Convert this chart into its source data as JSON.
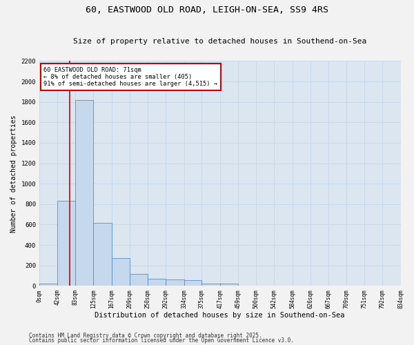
{
  "title": "60, EASTWOOD OLD ROAD, LEIGH-ON-SEA, SS9 4RS",
  "subtitle": "Size of property relative to detached houses in Southend-on-Sea",
  "xlabel": "Distribution of detached houses by size in Southend-on-Sea",
  "ylabel": "Number of detached properties",
  "bin_edges": [
    0,
    42,
    83,
    125,
    167,
    209,
    250,
    292,
    334,
    375,
    417,
    459,
    500,
    542,
    584,
    626,
    667,
    709,
    751,
    792,
    834
  ],
  "bar_heights": [
    20,
    830,
    1820,
    620,
    270,
    120,
    70,
    60,
    55,
    25,
    20,
    5,
    3,
    0,
    0,
    0,
    0,
    0,
    0,
    0
  ],
  "bar_color": "#c5d8ee",
  "bar_edge_color": "#5b8dc8",
  "grid_color": "#c8d8ec",
  "bg_color": "#dce6f1",
  "fig_bg_color": "#f2f2f2",
  "property_size": 71,
  "vline_color": "#cc0000",
  "annotation_text": "60 EASTWOOD OLD ROAD: 71sqm\n← 8% of detached houses are smaller (405)\n91% of semi-detached houses are larger (4,515) →",
  "annotation_box_color": "#ffffff",
  "annotation_box_edge": "#cc0000",
  "ylim": [
    0,
    2200
  ],
  "yticks": [
    0,
    200,
    400,
    600,
    800,
    1000,
    1200,
    1400,
    1600,
    1800,
    2000,
    2200
  ],
  "footnote1": "Contains HM Land Registry data © Crown copyright and database right 2025.",
  "footnote2": "Contains public sector information licensed under the Open Government Licence v3.0."
}
